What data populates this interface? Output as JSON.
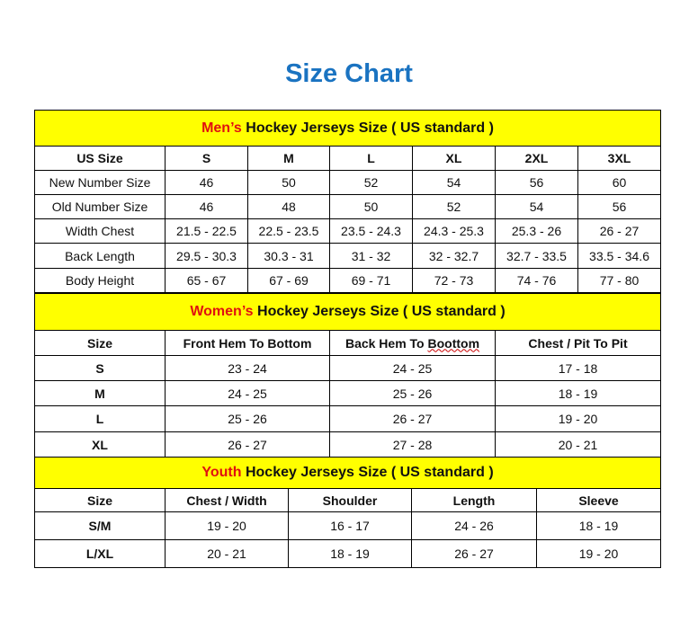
{
  "title": "Size Chart",
  "colors": {
    "title": "#1a73c1",
    "section_bg": "#ffff00",
    "highlight": "#e01010"
  },
  "men": {
    "highlight": "Men’s",
    "heading": " Hockey Jerseys Size ( US standard )",
    "columns": [
      "US Size",
      "S",
      "M",
      "L",
      "XL",
      "2XL",
      "3XL"
    ],
    "rows": [
      [
        "New Number Size",
        "46",
        "50",
        "52",
        "54",
        "56",
        "60"
      ],
      [
        "Old Number Size",
        "46",
        "48",
        "50",
        "52",
        "54",
        "56"
      ],
      [
        "Width Chest",
        "21.5 - 22.5",
        "22.5 - 23.5",
        "23.5 - 24.3",
        "24.3 - 25.3",
        "25.3 - 26",
        "26 - 27"
      ],
      [
        "Back Length",
        "29.5 - 30.3",
        "30.3 - 31",
        "31 - 32",
        "32 - 32.7",
        "32.7 - 33.5",
        "33.5 - 34.6"
      ],
      [
        "Body Height",
        "65 - 67",
        "67 - 69",
        "69 - 71",
        "72 - 73",
        "74 - 76",
        "77 - 80"
      ]
    ]
  },
  "women": {
    "highlight": "Women’s",
    "heading": " Hockey Jerseys Size ( US standard )",
    "columns": [
      "Size",
      "Front Hem To Bottom",
      "Back Hem To ",
      "Chest / Pit To Pit"
    ],
    "misspelled": "Boottom",
    "rows": [
      [
        "S",
        "23 - 24",
        "24 - 25",
        "17 - 18"
      ],
      [
        "M",
        "24 - 25",
        "25 - 26",
        "18 - 19"
      ],
      [
        "L",
        "25 - 26",
        "26 - 27",
        "19 - 20"
      ],
      [
        "XL",
        "26 - 27",
        "27 - 28",
        "20 - 21"
      ]
    ]
  },
  "youth": {
    "highlight": "Youth",
    "heading": " Hockey Jerseys Size ( US standard )",
    "columns": [
      "Size",
      "Chest / Width",
      "Shoulder",
      "Length",
      "Sleeve"
    ],
    "rows": [
      [
        "S/M",
        "19 - 20",
        "16 - 17",
        "24 - 26",
        "18 - 19"
      ],
      [
        "L/XL",
        "20 - 21",
        "18 - 19",
        "26 - 27",
        "19 - 20"
      ]
    ]
  }
}
